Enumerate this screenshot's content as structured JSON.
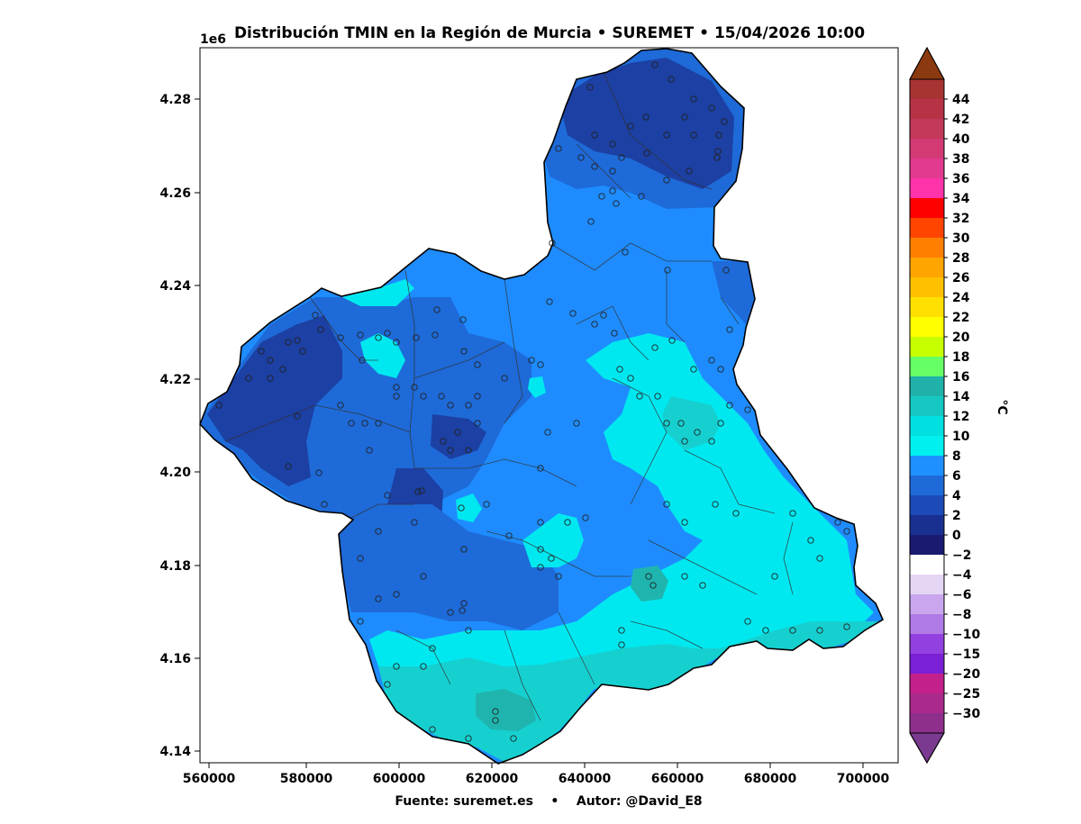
{
  "title": "Distribución TMIN en la Región de Murcia • SUREMET • 15/04/2026 10:00",
  "footer": {
    "source_label": "Fuente: suremet.es",
    "separator": "•",
    "author_label": "Autor: @David_E8"
  },
  "map": {
    "x_ticks": [
      "560000",
      "580000",
      "600000",
      "620000",
      "640000",
      "660000",
      "680000",
      "700000"
    ],
    "y_ticks": [
      "4.14",
      "4.16",
      "4.18",
      "4.20",
      "4.22",
      "4.24",
      "4.26",
      "4.28"
    ],
    "y_offset_label": "1e6",
    "colors": {
      "deep_blue": "#1c40a3",
      "mid_blue": "#1e6ad8",
      "light_blue": "#1e8cff",
      "cyan": "#00e8ef",
      "teal": "#16d0d0",
      "dark_teal": "#1fb5ae"
    }
  },
  "colorbar": {
    "unit": "°C",
    "tick_labels": [
      "44",
      "42",
      "40",
      "38",
      "36",
      "34",
      "32",
      "30",
      "28",
      "26",
      "24",
      "22",
      "20",
      "18",
      "16",
      "14",
      "12",
      "10",
      "8",
      "6",
      "4",
      "2",
      "0",
      "−2",
      "−4",
      "−6",
      "−8",
      "−10",
      "−15",
      "−20",
      "−25",
      "−30"
    ],
    "top_extension_color": "#8b3a10",
    "bottom_extension_color": "#7a3a8f",
    "band_colors": [
      "#a83333",
      "#b83245",
      "#c4385a",
      "#d33a74",
      "#e23a8f",
      "#ff33aa",
      "#ff0000",
      "#ff4500",
      "#ff7f00",
      "#ffa500",
      "#ffc000",
      "#ffe000",
      "#ffff00",
      "#c8ff00",
      "#66ff66",
      "#20b2aa",
      "#17c7c2",
      "#00e0e0",
      "#00f0f0",
      "#1e90ff",
      "#1e6ad8",
      "#1c4ab8",
      "#1a3090",
      "#1a1a70",
      "#ffffff",
      "#e6d6f5",
      "#c9a6ee",
      "#b07ae6",
      "#9340e0",
      "#7a20d6",
      "#c4208c",
      "#aa2a8c",
      "#8e2f8c"
    ]
  }
}
